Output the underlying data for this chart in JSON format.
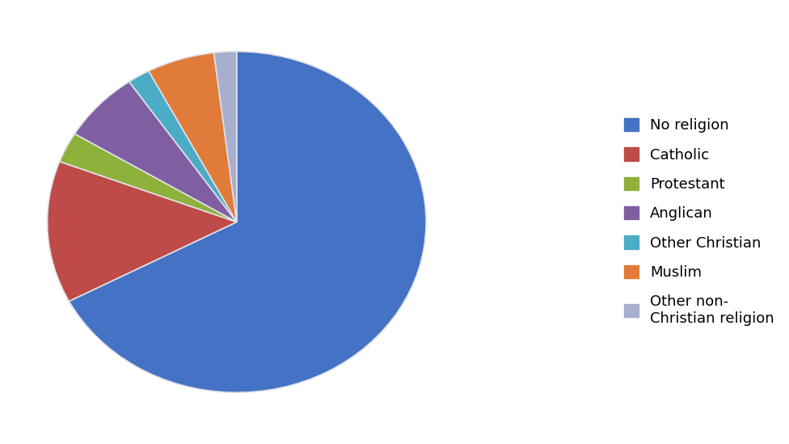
{
  "labels": [
    "No religion",
    "Catholic",
    "Protestant",
    "Anglican",
    "Other Christian",
    "Muslim",
    "Other non-\nChristian religion"
  ],
  "values": [
    70,
    14,
    3,
    7,
    2,
    6,
    2
  ],
  "colors": [
    "#4472C4",
    "#BE4B48",
    "#8EB13C",
    "#7F5FA2",
    "#4BACC6",
    "#E07B39",
    "#A8AFCC"
  ],
  "legend_labels": [
    "No religion",
    "Catholic",
    "Protestant",
    "Anglican",
    "Other Christian",
    "Muslim",
    "Other non-\nChristian religion"
  ],
  "startangle": 90,
  "figsize": [
    9.76,
    5.49
  ],
  "dpi": 100,
  "background_color": "#ffffff",
  "legend_fontsize": 13,
  "edge_color": "#e0e0e8"
}
